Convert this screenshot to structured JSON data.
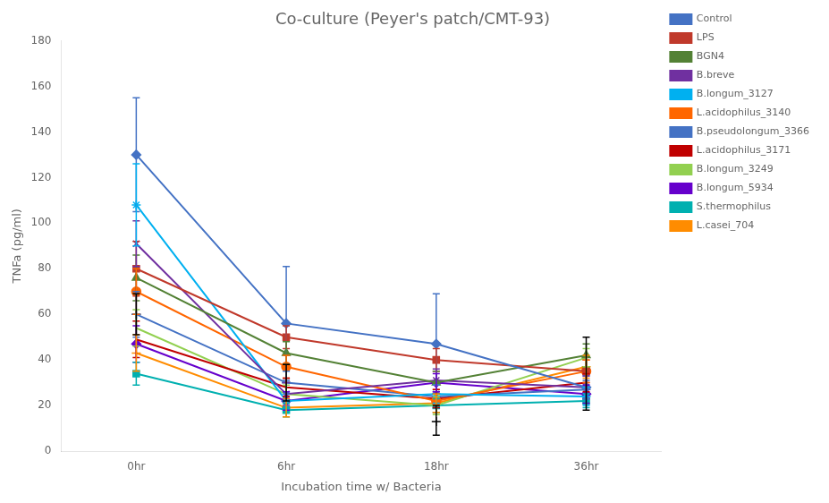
{
  "chart_data": {
    "type": "line",
    "title": "Co-culture (Peyer's patch/CMT-93)",
    "xlabel": "Incubation time w/ Bacteria",
    "ylabel": "TNFa (pg/ml)",
    "categories": [
      "0hr",
      "6hr",
      "18hr",
      "36hr"
    ],
    "ylim": [
      0,
      180
    ],
    "yticks": [
      0,
      20,
      40,
      60,
      80,
      100,
      120,
      140,
      160,
      180
    ],
    "grid": false,
    "legend": "right",
    "series": [
      {
        "name": "Control",
        "color": "#4472C4",
        "marker": "diamond",
        "line_style": "solid",
        "values": [
          130,
          56,
          47,
          28
        ],
        "yerr": [
          25,
          25,
          22,
          5
        ]
      },
      {
        "name": "LPS",
        "color": "#C0392B",
        "marker": "square",
        "line_style": "solid",
        "values": [
          80,
          50,
          40,
          35
        ],
        "yerr": [
          12,
          5,
          5,
          5
        ]
      },
      {
        "name": "BGN4",
        "color": "#538135",
        "marker": "triangle",
        "line_style": "solid",
        "values": [
          76,
          43,
          30,
          42
        ],
        "yerr": [
          10,
          5,
          5,
          5
        ]
      },
      {
        "name": "B.breve",
        "color": "#7030A0",
        "marker": "x",
        "line_style": "solid",
        "values": [
          91,
          25,
          31,
          28
        ],
        "yerr": [
          10,
          5,
          5,
          5
        ]
      },
      {
        "name": "B.longum_3127",
        "color": "#00B0F0",
        "marker": "star",
        "line_style": "solid",
        "values": [
          108,
          22,
          25,
          24
        ],
        "yerr": [
          18,
          4,
          4,
          4
        ]
      },
      {
        "name": "L.acidophilus_3140",
        "color": "#FF6600",
        "marker": "circle",
        "line_style": "solid",
        "values": [
          70,
          37,
          22,
          35
        ],
        "yerr": [
          10,
          5,
          5,
          5
        ]
      },
      {
        "name": "B.pseudolongum_3366",
        "color": "#4472C4",
        "marker": "plus",
        "line_style": "solid",
        "values": [
          60,
          30,
          24,
          27
        ],
        "yerr": [
          10,
          5,
          5,
          4
        ]
      },
      {
        "name": "L.acidophilus_3171",
        "color": "#C00000",
        "marker": "none",
        "line_style": "solid",
        "values": [
          49,
          28,
          23,
          30
        ],
        "yerr": [
          8,
          4,
          4,
          4
        ]
      },
      {
        "name": "B.longum_3249",
        "color": "#92D050",
        "marker": "none",
        "line_style": "solid",
        "values": [
          54,
          25,
          20,
          41
        ],
        "yerr": [
          8,
          4,
          4,
          4
        ]
      },
      {
        "name": "B.longum_5934",
        "color": "#6600CC",
        "marker": "diamond",
        "line_style": "solid",
        "values": [
          47,
          22,
          30,
          25
        ],
        "yerr": [
          8,
          4,
          4,
          4
        ]
      },
      {
        "name": "S.thermophilus",
        "color": "#00B0B0",
        "marker": "square",
        "line_style": "solid",
        "values": [
          34,
          18,
          20,
          22
        ],
        "yerr": [
          5,
          3,
          3,
          3
        ]
      },
      {
        "name": "L.casei_704",
        "color": "#FF8C00",
        "marker": "plus",
        "line_style": "solid",
        "values": [
          43,
          19,
          21,
          37
        ],
        "yerr": [
          8,
          4,
          4,
          5
        ]
      },
      {
        "color": "#000000",
        "marker": "plus",
        "line_style": "none",
        "values": [
          60,
          30,
          13,
          25
        ],
        "yerr_low": [
          9,
          8,
          6,
          7
        ],
        "yerr_high": [
          9,
          8,
          7,
          25
        ]
      }
    ]
  }
}
